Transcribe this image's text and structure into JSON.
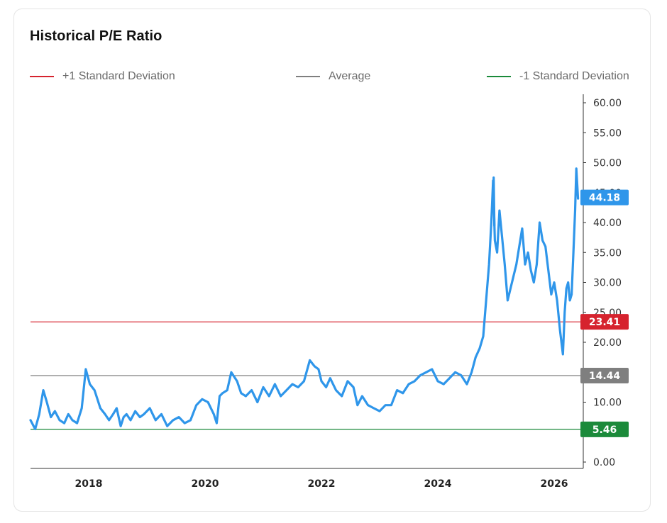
{
  "chart_data": {
    "type": "line",
    "title": "Historical P/E Ratio",
    "xlabel": "",
    "ylabel": "",
    "xlim": [
      2017.0,
      2026.5
    ],
    "ylim": [
      0,
      60
    ],
    "y_ticks": [
      "0.00",
      "10.00",
      "15.00",
      "20.00",
      "25.00",
      "30.00",
      "35.00",
      "40.00",
      "45.00",
      "50.00",
      "55.00",
      "60.00"
    ],
    "x_ticks": [
      "2018",
      "2020",
      "2022",
      "2024",
      "2026"
    ],
    "grid": false,
    "legend_position": "top",
    "reference_lines": [
      {
        "name": "+1 Standard Deviation",
        "value": 23.41,
        "label": "23.41",
        "color": "#d6232e"
      },
      {
        "name": "Average",
        "value": 14.44,
        "label": "14.44",
        "color": "#7f7f7f"
      },
      {
        "name": "-1 Standard Deviation",
        "value": 5.46,
        "label": "5.46",
        "color": "#1b8a3a"
      }
    ],
    "current": {
      "value": 44.18,
      "label": "44.18",
      "color": "#2f96ea"
    },
    "series": [
      {
        "color": "#2f96ea",
        "x": [
          2017.0,
          2017.08,
          2017.15,
          2017.22,
          2017.28,
          2017.35,
          2017.42,
          2017.5,
          2017.58,
          2017.65,
          2017.72,
          2017.8,
          2017.88,
          2017.95,
          2018.02,
          2018.1,
          2018.15,
          2018.2,
          2018.28,
          2018.35,
          2018.42,
          2018.48,
          2018.55,
          2018.6,
          2018.65,
          2018.72,
          2018.8,
          2018.88,
          2018.95,
          2019.05,
          2019.15,
          2019.25,
          2019.35,
          2019.45,
          2019.55,
          2019.65,
          2019.75,
          2019.85,
          2019.95,
          2020.05,
          2020.15,
          2020.2,
          2020.25,
          2020.3,
          2020.38,
          2020.45,
          2020.55,
          2020.62,
          2020.7,
          2020.8,
          2020.9,
          2021.0,
          2021.1,
          2021.2,
          2021.3,
          2021.4,
          2021.5,
          2021.6,
          2021.7,
          2021.8,
          2021.88,
          2021.95,
          2022.0,
          2022.08,
          2022.15,
          2022.25,
          2022.35,
          2022.45,
          2022.55,
          2022.62,
          2022.7,
          2022.8,
          2022.9,
          2023.0,
          2023.1,
          2023.2,
          2023.3,
          2023.4,
          2023.5,
          2023.6,
          2023.7,
          2023.8,
          2023.9,
          2024.0,
          2024.1,
          2024.2,
          2024.3,
          2024.4,
          2024.5,
          2024.58,
          2024.65,
          2024.72,
          2024.78,
          2024.83,
          2024.88,
          2024.92,
          2024.95,
          2024.98,
          2025.02,
          2025.06,
          2025.1,
          2025.15,
          2025.2,
          2025.25,
          2025.3,
          2025.35,
          2025.4,
          2025.45,
          2025.5,
          2025.55,
          2025.6,
          2025.65,
          2025.7,
          2025.75,
          2025.8,
          2025.85,
          2025.9,
          2025.95,
          2026.0,
          2026.05,
          2026.1,
          2026.15,
          2026.18,
          2026.21,
          2026.24,
          2026.27,
          2026.3,
          2026.33,
          2026.36,
          2026.38,
          2026.41
        ],
        "y": [
          7,
          5.5,
          8,
          12,
          10,
          7.5,
          8.5,
          7,
          6.5,
          8,
          7,
          6.5,
          9,
          15.5,
          13,
          12,
          10.5,
          9,
          8,
          7,
          8,
          9,
          6,
          7.5,
          8,
          7,
          8.5,
          7.5,
          8,
          9,
          7,
          8,
          6,
          7,
          7.5,
          6.5,
          7,
          9.5,
          10.5,
          10,
          8,
          6.5,
          11,
          11.5,
          12,
          15,
          13.5,
          11.5,
          11,
          12,
          10,
          12.5,
          11,
          13,
          11,
          12,
          13,
          12.5,
          13.5,
          17,
          16,
          15.5,
          13.5,
          12.5,
          14,
          12,
          11,
          13.5,
          12.5,
          9.5,
          11,
          9.5,
          9,
          8.5,
          9.5,
          9.5,
          12,
          11.5,
          13,
          13.5,
          14.5,
          15,
          15.5,
          13.5,
          13,
          14,
          15,
          14.5,
          13,
          15,
          17.5,
          19,
          21,
          27,
          33,
          40,
          47,
          37,
          35,
          42,
          38,
          33,
          27,
          29,
          31,
          33,
          36,
          39,
          33,
          35,
          32,
          30,
          33,
          40,
          37,
          36,
          32,
          28,
          30,
          27,
          22,
          18,
          25,
          29,
          30,
          27,
          28,
          35,
          42,
          49,
          44
        ],
        "visible_marks": [
          {
            "x": 2024.96,
            "y": 47.5
          }
        ]
      }
    ]
  }
}
